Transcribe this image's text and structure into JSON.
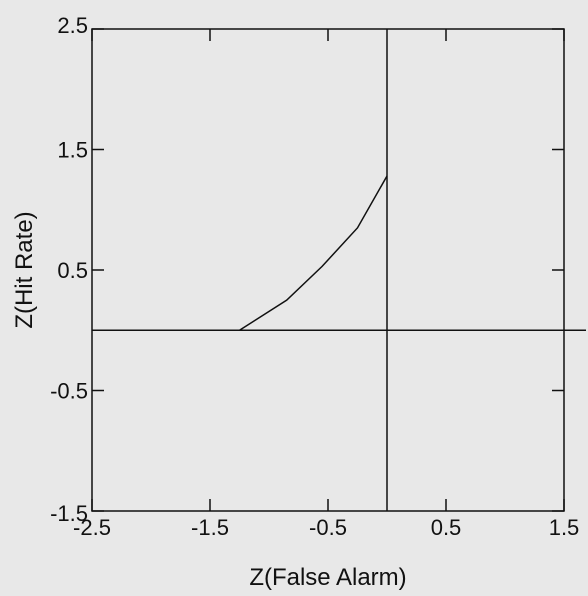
{
  "chart_data": {
    "type": "line",
    "title": "",
    "xlabel": "Z(False Alarm)",
    "ylabel": "Z(Hit Rate)",
    "xlim": [
      -2.5,
      1.5
    ],
    "ylim": [
      -1.5,
      2.5
    ],
    "x_ticks": [
      -2.5,
      -1.5,
      -0.5,
      0.5,
      1.5
    ],
    "y_ticks": [
      -1.5,
      -0.5,
      0.5,
      1.5,
      2.5
    ],
    "x_tick_labels": [
      "-2.5",
      "-1.5",
      "-0.5",
      "0.5",
      "1.5"
    ],
    "y_tick_labels": [
      "-1.5",
      "-0.5",
      "0.5",
      "1.5",
      "2.5"
    ],
    "grid": false,
    "reference_lines": [
      {
        "orientation": "horizontal",
        "value": 0
      },
      {
        "orientation": "vertical",
        "value": 0
      }
    ],
    "series": [
      {
        "x": [
          -1.25,
          -0.85,
          -0.55,
          -0.25,
          0.0
        ],
        "y": [
          0.0,
          0.25,
          0.53,
          0.85,
          1.28
        ]
      }
    ],
    "colors": {
      "axes": "#111111",
      "line": "#111111",
      "background": "#e8e8e8"
    }
  }
}
